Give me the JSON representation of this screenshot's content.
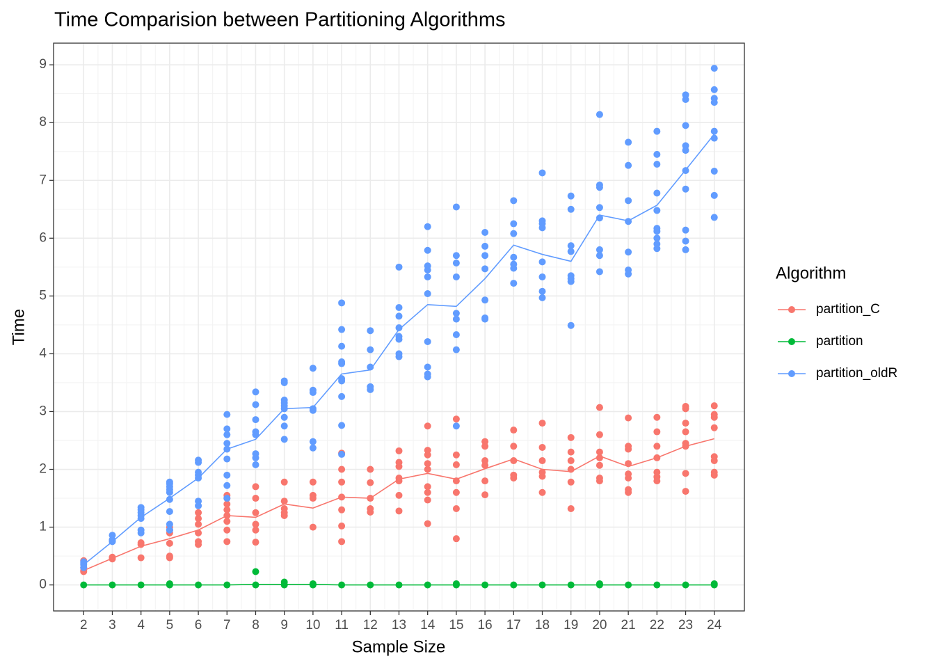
{
  "chart_data": {
    "type": "scatter",
    "title": "Time Comparision between Partitioning Algorithms",
    "x_label": "Sample Size",
    "y_label": "Time",
    "legend_title": "Algorithm",
    "legend_position": "right",
    "grid": true,
    "x": [
      2,
      3,
      4,
      5,
      6,
      7,
      8,
      9,
      10,
      11,
      12,
      13,
      14,
      15,
      16,
      17,
      18,
      19,
      20,
      21,
      22,
      23,
      24
    ],
    "xlim": [
      0.95,
      25.05
    ],
    "ylim": [
      -0.45,
      9.375
    ],
    "xticks": [
      2,
      3,
      4,
      5,
      6,
      7,
      8,
      9,
      10,
      11,
      12,
      13,
      14,
      15,
      16,
      17,
      18,
      19,
      20,
      21,
      22,
      23,
      24
    ],
    "yticks": [
      0,
      1,
      2,
      3,
      4,
      5,
      6,
      7,
      8,
      9
    ],
    "series": [
      {
        "name": "partition_C",
        "color": "#F8766D",
        "values": [
          0.25,
          0.46,
          0.67,
          0.8,
          0.95,
          1.2,
          1.17,
          1.4,
          1.33,
          1.52,
          1.5,
          1.83,
          1.93,
          1.83,
          2.01,
          2.18,
          2.0,
          1.96,
          2.23,
          2.05,
          2.2,
          2.4,
          2.53
        ],
        "samples": [
          [
            0.23,
            0.25,
            0.3,
            0.42
          ],
          [
            0.45,
            0.48
          ],
          [
            0.47,
            0.7,
            0.73
          ],
          [
            0.47,
            0.5,
            0.72,
            0.9,
            0.95,
            1.0
          ],
          [
            0.7,
            0.75,
            0.9,
            1.05,
            1.15,
            1.25
          ],
          [
            0.75,
            0.95,
            1.1,
            1.2,
            1.3,
            1.4,
            1.5,
            1.55
          ],
          [
            0.74,
            0.95,
            1.05,
            1.25,
            1.5,
            1.7
          ],
          [
            1.2,
            1.25,
            1.32,
            1.45,
            1.78
          ],
          [
            1.0,
            1.5,
            1.55,
            1.78
          ],
          [
            0.75,
            1.02,
            1.3,
            1.52,
            1.78,
            2.0,
            2.28
          ],
          [
            1.26,
            1.32,
            1.5,
            1.77,
            2.0
          ],
          [
            1.28,
            1.55,
            1.8,
            1.85,
            2.05,
            2.12,
            2.32
          ],
          [
            1.06,
            1.47,
            1.6,
            1.7,
            2.0,
            2.1,
            2.25,
            2.33,
            2.75
          ],
          [
            0.8,
            1.32,
            1.6,
            1.8,
            2.08,
            2.25,
            2.87
          ],
          [
            1.56,
            1.8,
            2.07,
            2.15,
            2.4,
            2.48
          ],
          [
            1.85,
            1.9,
            2.15,
            2.4,
            2.68
          ],
          [
            1.6,
            1.88,
            1.95,
            2.15,
            2.38,
            2.8
          ],
          [
            1.32,
            1.78,
            2.0,
            2.15,
            2.3,
            2.55
          ],
          [
            1.8,
            1.85,
            2.07,
            2.2,
            2.3,
            2.6,
            3.07
          ],
          [
            1.6,
            1.65,
            1.85,
            1.92,
            2.1,
            2.35,
            2.4,
            2.89
          ],
          [
            1.8,
            1.87,
            1.95,
            2.2,
            2.4,
            2.65,
            2.9
          ],
          [
            1.62,
            1.93,
            2.4,
            2.45,
            2.65,
            2.8,
            3.05,
            3.09
          ],
          [
            1.9,
            1.95,
            2.15,
            2.22,
            2.72,
            2.9,
            2.95,
            3.1
          ]
        ]
      },
      {
        "name": "partition",
        "color": "#00BA38",
        "values": [
          0,
          0,
          0,
          0,
          0,
          0,
          0.01,
          0.01,
          0.01,
          0,
          0,
          0,
          0,
          0,
          0,
          0,
          0,
          0,
          0,
          0,
          0,
          0,
          0
        ],
        "samples": [
          [
            0
          ],
          [
            0
          ],
          [
            0
          ],
          [
            0,
            0.02
          ],
          [
            0
          ],
          [
            0
          ],
          [
            0,
            0.23
          ],
          [
            0,
            0.05
          ],
          [
            0,
            0.02
          ],
          [
            0
          ],
          [
            0
          ],
          [
            0
          ],
          [
            0
          ],
          [
            0,
            0.02
          ],
          [
            0
          ],
          [
            0
          ],
          [
            0
          ],
          [
            0
          ],
          [
            0,
            0.02
          ],
          [
            0
          ],
          [
            0
          ],
          [
            0
          ],
          [
            0,
            0.02
          ]
        ]
      },
      {
        "name": "partition_oldR",
        "color": "#619CFF",
        "values": [
          0.35,
          0.75,
          1.17,
          1.5,
          1.85,
          2.35,
          2.52,
          3.05,
          3.07,
          3.65,
          3.72,
          4.42,
          4.85,
          4.82,
          5.3,
          5.88,
          5.72,
          5.6,
          6.4,
          6.3,
          6.57,
          7.18,
          7.8
        ],
        "samples": [
          [
            0.3,
            0.35,
            0.4,
            0.38
          ],
          [
            0.75,
            0.76,
            0.86,
            0.78
          ],
          [
            0.9,
            0.95,
            1.15,
            1.2,
            1.25,
            1.3,
            1.34
          ],
          [
            0.95,
            1.05,
            1.27,
            1.48,
            1.6,
            1.65,
            1.7,
            1.75,
            1.78
          ],
          [
            1.37,
            1.45,
            1.85,
            1.9,
            1.95,
            2.12,
            2.16
          ],
          [
            1.5,
            1.72,
            1.9,
            2.18,
            2.35,
            2.45,
            2.6,
            2.7,
            2.95
          ],
          [
            2.08,
            2.2,
            2.27,
            2.6,
            2.65,
            2.86,
            3.12,
            3.34
          ],
          [
            2.52,
            2.75,
            2.9,
            3.05,
            3.1,
            3.15,
            3.2,
            3.5,
            3.53
          ],
          [
            2.37,
            2.48,
            3.02,
            3.05,
            3.33,
            3.37,
            3.75
          ],
          [
            2.26,
            2.76,
            3.26,
            3.53,
            3.57,
            3.83,
            3.86,
            4.13,
            4.42,
            4.88
          ],
          [
            3.38,
            3.43,
            3.77,
            4.07,
            4.4
          ],
          [
            3.95,
            4.0,
            4.25,
            4.3,
            4.45,
            4.65,
            4.8,
            5.5
          ],
          [
            3.6,
            3.65,
            3.77,
            4.21,
            5.04,
            5.33,
            5.45,
            5.52,
            5.79,
            6.2
          ],
          [
            2.75,
            4.07,
            4.33,
            4.6,
            4.7,
            5.33,
            5.57,
            5.7,
            6.54
          ],
          [
            4.6,
            4.62,
            4.93,
            5.47,
            5.7,
            5.86,
            6.1
          ],
          [
            5.22,
            5.48,
            5.55,
            5.67,
            6.08,
            6.25,
            6.65
          ],
          [
            4.97,
            5.08,
            5.33,
            5.59,
            6.18,
            6.25,
            6.3,
            7.13
          ],
          [
            4.49,
            5.25,
            5.3,
            5.35,
            5.77,
            5.87,
            6.5,
            6.73
          ],
          [
            5.42,
            5.7,
            5.8,
            6.35,
            6.53,
            6.88,
            6.92,
            8.14
          ],
          [
            5.38,
            5.45,
            5.76,
            6.29,
            6.65,
            7.26,
            7.66
          ],
          [
            5.82,
            5.9,
            6.0,
            6.12,
            6.17,
            6.48,
            6.78,
            7.28,
            7.45,
            7.85
          ],
          [
            5.8,
            5.95,
            6.14,
            6.85,
            7.17,
            7.52,
            7.6,
            7.95,
            8.4,
            8.48
          ],
          [
            6.36,
            6.74,
            7.16,
            7.73,
            7.85,
            8.35,
            8.42,
            8.57,
            8.94
          ]
        ]
      }
    ]
  }
}
